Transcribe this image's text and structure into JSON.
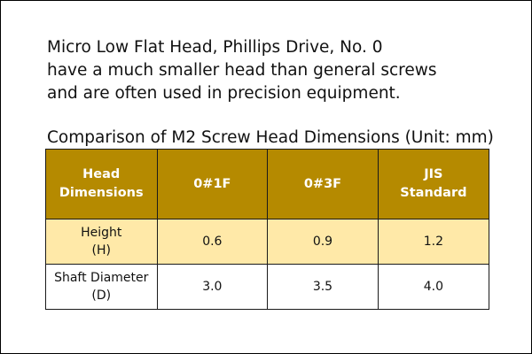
{
  "intro": {
    "lines": [
      "Micro Low Flat Head, Phillips Drive, No. 0",
      "have a much smaller head than general screws",
      "and are often used in precision equipment."
    ]
  },
  "table": {
    "caption": "Comparison of M2 Screw Head Dimensions (Unit: mm)",
    "headers": [
      {
        "line1": "Head",
        "line2": "Dimensions"
      },
      {
        "line1": "0#1F",
        "line2": ""
      },
      {
        "line1": "0#3F",
        "line2": ""
      },
      {
        "line1": "JIS",
        "line2": "Standard"
      }
    ],
    "rows": [
      {
        "label_line1": "Height",
        "label_line2": "(H)",
        "values": [
          "0.6",
          "0.9",
          "1.2"
        ]
      },
      {
        "label_line1": "Shaft Diameter",
        "label_line2": "(D)",
        "values": [
          "3.0",
          "3.5",
          "4.0"
        ]
      }
    ]
  },
  "colors": {
    "header_bg": "#b58a00",
    "header_text": "#ffffff",
    "highlight_row": "#ffe9a8",
    "border": "#1a1a1a"
  }
}
